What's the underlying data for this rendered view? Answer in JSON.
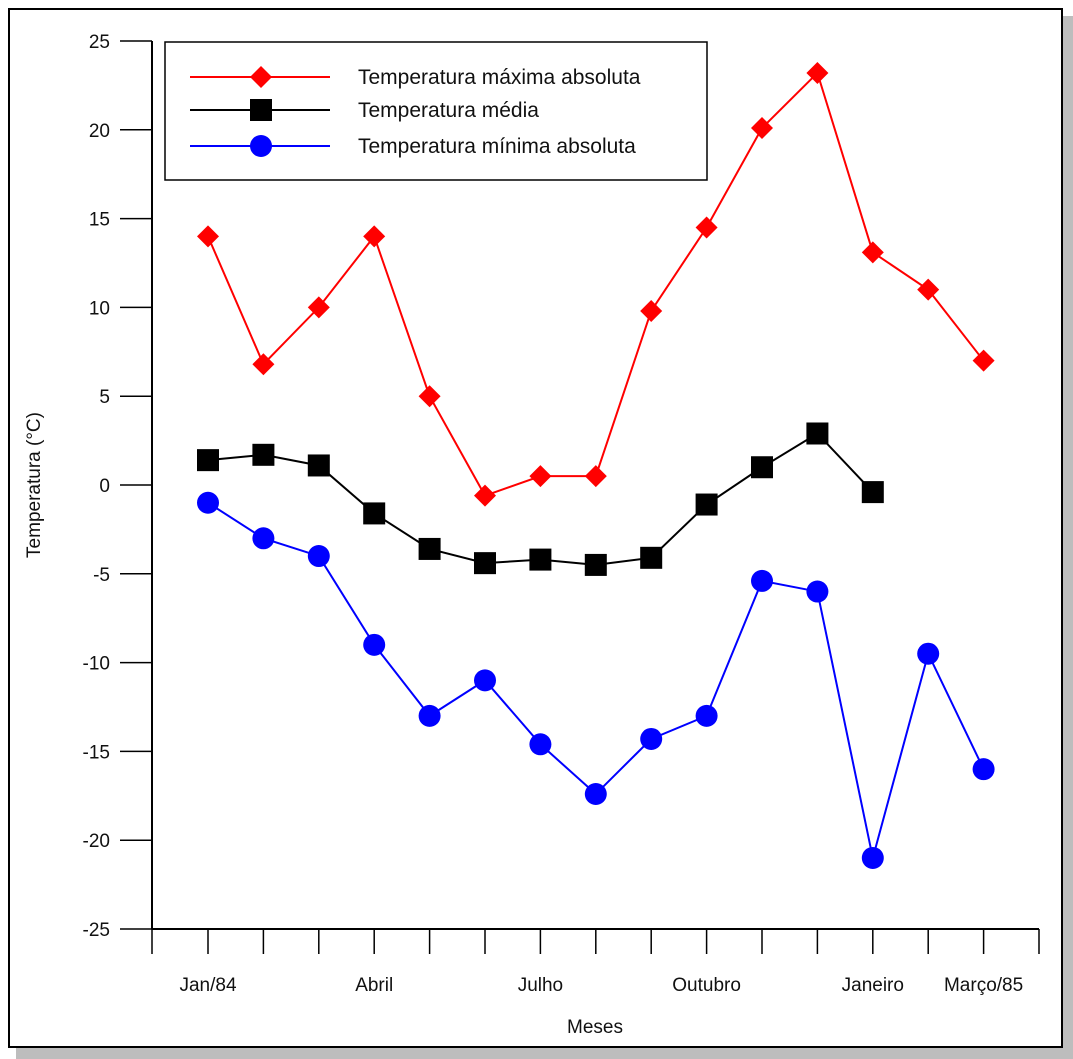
{
  "chart_data": {
    "type": "line",
    "xlabel": "Meses",
    "ylabel": "Temperatura (°C)",
    "ylim": [
      -25,
      25
    ],
    "yticks": [
      25,
      20,
      15,
      10,
      5,
      0,
      -5,
      -10,
      -15,
      -20,
      -25
    ],
    "x_count": 15,
    "x_tick_labels": [
      {
        "index": 0,
        "label": "Jan/84"
      },
      {
        "index": 3,
        "label": "Abril"
      },
      {
        "index": 6,
        "label": "Julho"
      },
      {
        "index": 9,
        "label": "Outubro"
      },
      {
        "index": 12,
        "label": "Janeiro"
      },
      {
        "index": 14,
        "label": "Março/85"
      }
    ],
    "grid": false,
    "legend_position": "top-left",
    "series": [
      {
        "name": "Temperatura máxima absoluta",
        "color": "#ff0000",
        "marker": "diamond",
        "values": [
          14,
          6.8,
          10,
          14,
          5,
          -0.6,
          0.5,
          0.5,
          9.8,
          14.5,
          20.1,
          23.2,
          13.1,
          11,
          7
        ]
      },
      {
        "name": "Temperatura média",
        "color": "#000000",
        "marker": "square",
        "values": [
          1.4,
          1.7,
          1.1,
          -1.6,
          -3.6,
          -4.4,
          -4.2,
          -4.5,
          -4.1,
          -1.1,
          1.0,
          2.9,
          -0.4,
          null,
          null
        ]
      },
      {
        "name": "Temperatura mínima absoluta",
        "color": "#0000ff",
        "marker": "circle",
        "values": [
          -1,
          -3,
          -4,
          -9,
          -13,
          -11,
          -14.6,
          -17.4,
          -14.3,
          -13,
          -5.4,
          -6,
          -21,
          -9.5,
          -16
        ]
      }
    ]
  }
}
